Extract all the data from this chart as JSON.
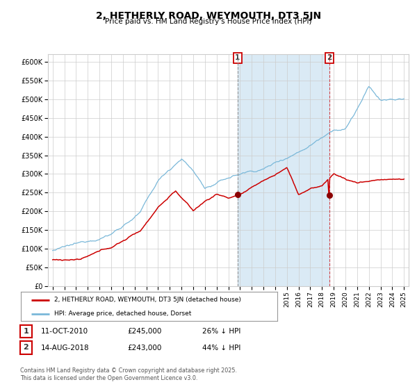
{
  "title": "2, HETHERLY ROAD, WEYMOUTH, DT3 5JN",
  "subtitle": "Price paid vs. HM Land Registry's House Price Index (HPI)",
  "hpi_color": "#7ab8d9",
  "price_color": "#cc0000",
  "marker_color": "#8b0000",
  "grid_color": "#cccccc",
  "bg_color": "#ffffff",
  "shade_color": "#daeaf5",
  "ylim": [
    0,
    620000
  ],
  "yticks": [
    0,
    50000,
    100000,
    150000,
    200000,
    250000,
    300000,
    350000,
    400000,
    450000,
    500000,
    550000,
    600000
  ],
  "transaction1_date": "11-OCT-2010",
  "transaction1_price": 245000,
  "transaction1_pct": "26%",
  "transaction2_date": "14-AUG-2018",
  "transaction2_price": 243000,
  "transaction2_pct": "44%",
  "legend_label1": "2, HETHERLY ROAD, WEYMOUTH, DT3 5JN (detached house)",
  "legend_label2": "HPI: Average price, detached house, Dorset",
  "footer": "Contains HM Land Registry data © Crown copyright and database right 2025.\nThis data is licensed under the Open Government Licence v3.0.",
  "xstart_year": 1995,
  "xend_year": 2025,
  "hpi_key_t": [
    0,
    0.083,
    0.167,
    0.25,
    0.3,
    0.367,
    0.4,
    0.433,
    0.467,
    0.5,
    0.55,
    0.6,
    0.65,
    0.7,
    0.733,
    0.767,
    0.8,
    0.833,
    0.867,
    0.9,
    0.933,
    1.0
  ],
  "hpi_key_v": [
    95000,
    110000,
    140000,
    200000,
    280000,
    345000,
    310000,
    265000,
    275000,
    290000,
    305000,
    315000,
    340000,
    365000,
    385000,
    410000,
    435000,
    435000,
    490000,
    545000,
    510000,
    510000
  ],
  "price_key_t": [
    0,
    0.083,
    0.167,
    0.25,
    0.3,
    0.35,
    0.4,
    0.433,
    0.467,
    0.5,
    0.533,
    0.567,
    0.6,
    0.633,
    0.667,
    0.7,
    0.733,
    0.767,
    0.8,
    0.833,
    0.867,
    0.9,
    0.933,
    1.0
  ],
  "price_key_v": [
    70000,
    72000,
    100000,
    145000,
    210000,
    255000,
    200000,
    225000,
    245000,
    235000,
    245000,
    260000,
    280000,
    295000,
    315000,
    243000,
    260000,
    265000,
    300000,
    285000,
    275000,
    280000,
    285000,
    285000
  ]
}
